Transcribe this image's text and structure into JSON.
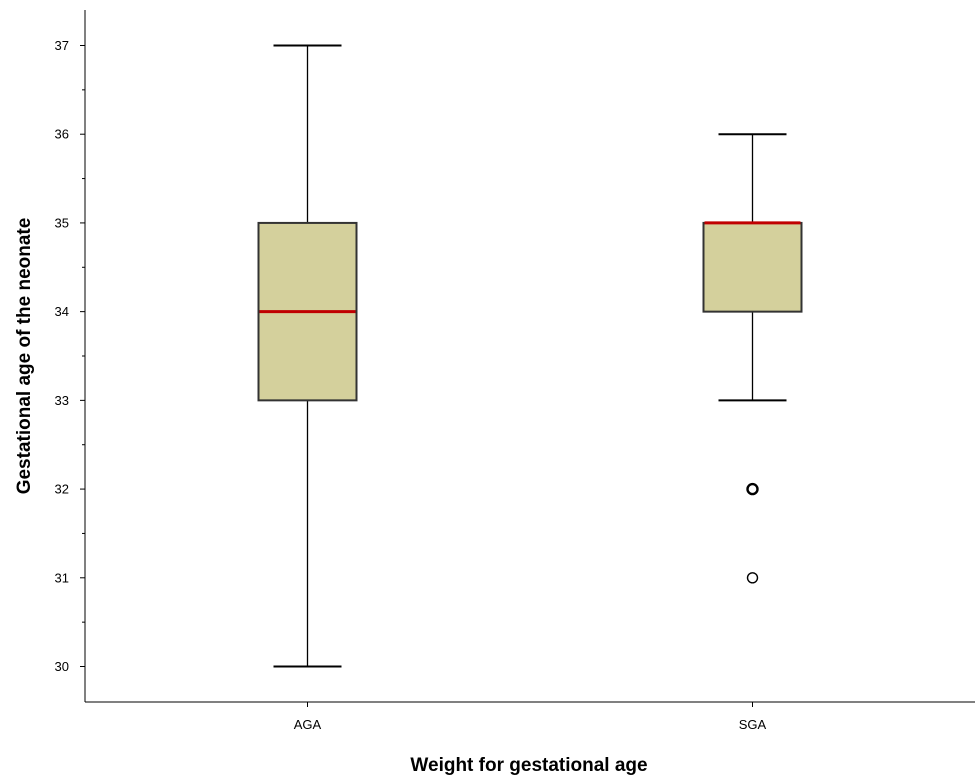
{
  "chart_data": {
    "type": "boxplot",
    "title": "",
    "xlabel": "Weight for gestational age",
    "ylabel": "Gestational age of the neonate",
    "ylim": [
      29.6,
      37.4
    ],
    "yticks": [
      30,
      31,
      32,
      33,
      34,
      35,
      36,
      37
    ],
    "grid": false,
    "categories": [
      "AGA",
      "SGA"
    ],
    "boxes": [
      {
        "category": "AGA",
        "whisker_low": 30,
        "q1": 33,
        "median": 34,
        "q3": 35,
        "whisker_high": 37,
        "outliers": []
      },
      {
        "category": "SGA",
        "whisker_low": 33,
        "q1": 34,
        "median": 35,
        "q3": 35,
        "whisker_high": 36,
        "outliers": [
          32,
          31
        ]
      }
    ],
    "colors": {
      "box_fill": "#d4d09c",
      "median": "#c00000",
      "stroke": "#000000"
    }
  }
}
